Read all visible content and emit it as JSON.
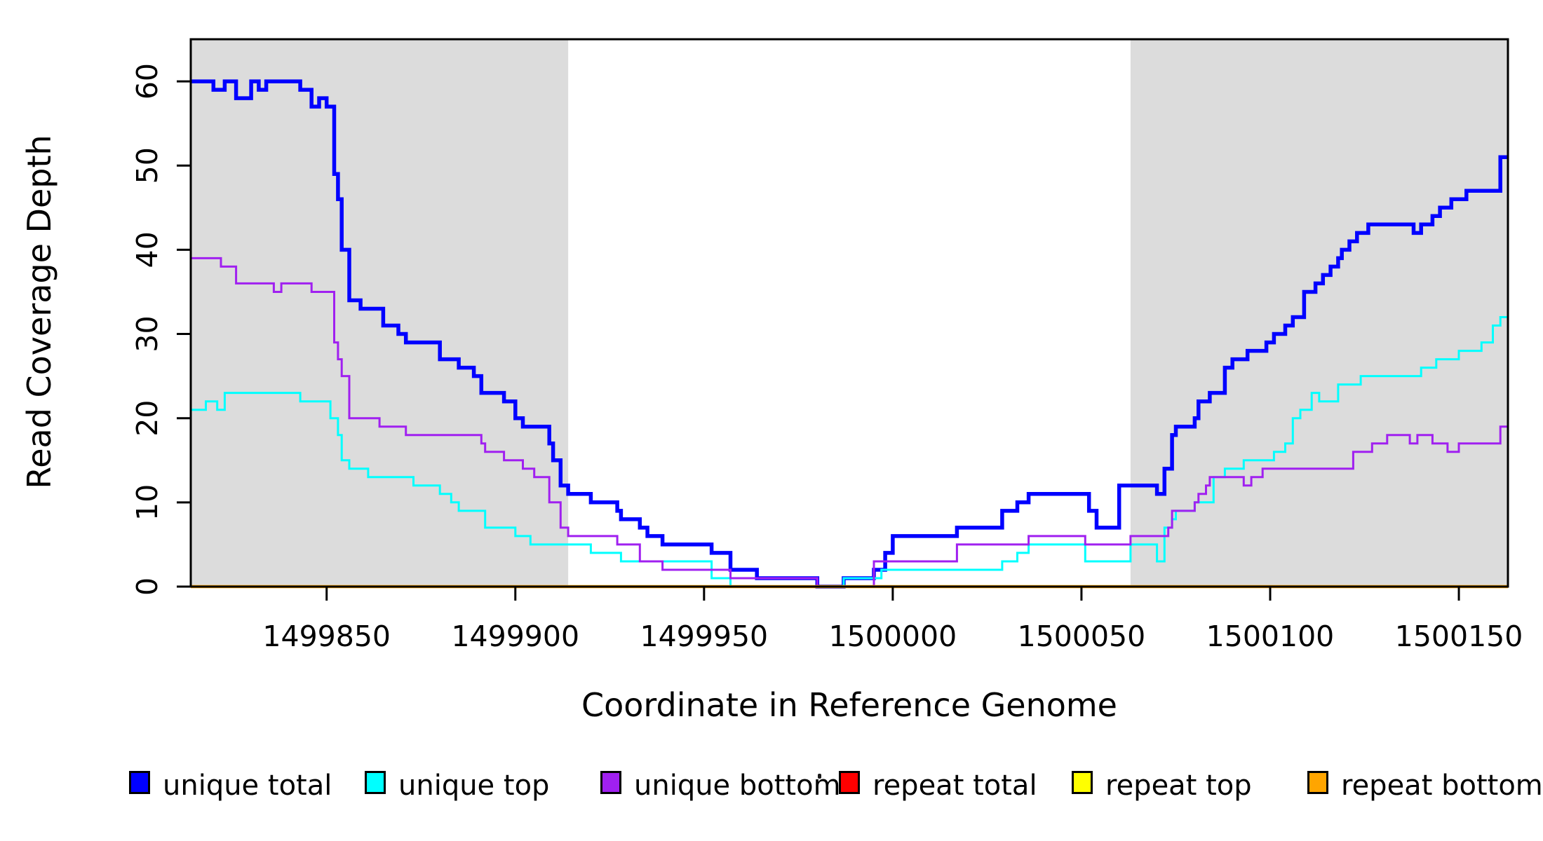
{
  "chart_data": {
    "type": "line",
    "subtype": "step-coverage",
    "title": "",
    "xlabel": "Coordinate in Reference Genome",
    "ylabel": "Read Coverage Depth",
    "xlim": [
      1499814,
      1500163
    ],
    "ylim": [
      0,
      65
    ],
    "grid": false,
    "x_ticks": [
      1499850,
      1499900,
      1499950,
      1500000,
      1500050,
      1500100,
      1500150
    ],
    "y_ticks": [
      0,
      10,
      20,
      30,
      40,
      50,
      60
    ],
    "shaded_regions": [
      {
        "name": "left-flank",
        "x0": 1499814,
        "x1": 1499914,
        "color": "#DCDCDC"
      },
      {
        "name": "right-flank",
        "x0": 1500063,
        "x1": 1500163,
        "color": "#DCDCDC"
      }
    ],
    "series": [
      {
        "name": "unique total",
        "color": "#0000FF",
        "width": 5.5,
        "points": [
          [
            1499814,
            60
          ],
          [
            1499820,
            59
          ],
          [
            1499823,
            60
          ],
          [
            1499826,
            58
          ],
          [
            1499830,
            60
          ],
          [
            1499832,
            59
          ],
          [
            1499834,
            60
          ],
          [
            1499843,
            59
          ],
          [
            1499846,
            57
          ],
          [
            1499848,
            58
          ],
          [
            1499850,
            57
          ],
          [
            1499852,
            49
          ],
          [
            1499853,
            46
          ],
          [
            1499854,
            40
          ],
          [
            1499856,
            34
          ],
          [
            1499859,
            33
          ],
          [
            1499865,
            31
          ],
          [
            1499869,
            30
          ],
          [
            1499871,
            29
          ],
          [
            1499880,
            27
          ],
          [
            1499885,
            26
          ],
          [
            1499889,
            25
          ],
          [
            1499891,
            23
          ],
          [
            1499897,
            22
          ],
          [
            1499900,
            20
          ],
          [
            1499902,
            19
          ],
          [
            1499909,
            17
          ],
          [
            1499910,
            15
          ],
          [
            1499912,
            12
          ],
          [
            1499914,
            11
          ],
          [
            1499920,
            10
          ],
          [
            1499927,
            9
          ],
          [
            1499928,
            8
          ],
          [
            1499933,
            7
          ],
          [
            1499935,
            6
          ],
          [
            1499939,
            5
          ],
          [
            1499952,
            4
          ],
          [
            1499957,
            2
          ],
          [
            1499964,
            1
          ],
          [
            1499980,
            0
          ],
          [
            1499987,
            1
          ],
          [
            1499995,
            2
          ],
          [
            1499998,
            4
          ],
          [
            1500000,
            6
          ],
          [
            1500017,
            7
          ],
          [
            1500029,
            9
          ],
          [
            1500033,
            10
          ],
          [
            1500036,
            11
          ],
          [
            1500052,
            9
          ],
          [
            1500054,
            7
          ],
          [
            1500060,
            12
          ],
          [
            1500070,
            11
          ],
          [
            1500072,
            14
          ],
          [
            1500074,
            18
          ],
          [
            1500075,
            19
          ],
          [
            1500080,
            20
          ],
          [
            1500081,
            22
          ],
          [
            1500084,
            23
          ],
          [
            1500088,
            26
          ],
          [
            1500090,
            27
          ],
          [
            1500094,
            28
          ],
          [
            1500099,
            29
          ],
          [
            1500101,
            30
          ],
          [
            1500104,
            31
          ],
          [
            1500106,
            32
          ],
          [
            1500109,
            35
          ],
          [
            1500112,
            36
          ],
          [
            1500114,
            37
          ],
          [
            1500116,
            38
          ],
          [
            1500118,
            39
          ],
          [
            1500119,
            40
          ],
          [
            1500121,
            41
          ],
          [
            1500123,
            42
          ],
          [
            1500126,
            43
          ],
          [
            1500138,
            42
          ],
          [
            1500140,
            43
          ],
          [
            1500143,
            44
          ],
          [
            1500145,
            45
          ],
          [
            1500148,
            46
          ],
          [
            1500152,
            47
          ],
          [
            1500161,
            51
          ],
          [
            1500163,
            51
          ]
        ]
      },
      {
        "name": "unique top",
        "color": "#00FFFF",
        "width": 3,
        "points": [
          [
            1499814,
            21
          ],
          [
            1499818,
            22
          ],
          [
            1499821,
            21
          ],
          [
            1499823,
            23
          ],
          [
            1499843,
            22
          ],
          [
            1499851,
            20
          ],
          [
            1499853,
            18
          ],
          [
            1499854,
            15
          ],
          [
            1499856,
            14
          ],
          [
            1499861,
            13
          ],
          [
            1499873,
            12
          ],
          [
            1499880,
            11
          ],
          [
            1499883,
            10
          ],
          [
            1499885,
            9
          ],
          [
            1499892,
            7
          ],
          [
            1499900,
            6
          ],
          [
            1499904,
            5
          ],
          [
            1499920,
            4
          ],
          [
            1499928,
            3
          ],
          [
            1499952,
            1
          ],
          [
            1499957,
            0
          ],
          [
            1499987,
            1
          ],
          [
            1499997,
            2
          ],
          [
            1500029,
            3
          ],
          [
            1500033,
            4
          ],
          [
            1500036,
            5
          ],
          [
            1500051,
            3
          ],
          [
            1500063,
            5
          ],
          [
            1500070,
            3
          ],
          [
            1500072,
            7
          ],
          [
            1500074,
            8
          ],
          [
            1500075,
            9
          ],
          [
            1500080,
            10
          ],
          [
            1500085,
            13
          ],
          [
            1500088,
            14
          ],
          [
            1500093,
            15
          ],
          [
            1500101,
            16
          ],
          [
            1500104,
            17
          ],
          [
            1500106,
            20
          ],
          [
            1500108,
            21
          ],
          [
            1500111,
            23
          ],
          [
            1500113,
            22
          ],
          [
            1500118,
            24
          ],
          [
            1500124,
            25
          ],
          [
            1500140,
            26
          ],
          [
            1500144,
            27
          ],
          [
            1500150,
            28
          ],
          [
            1500156,
            29
          ],
          [
            1500159,
            31
          ],
          [
            1500161,
            32
          ],
          [
            1500163,
            32
          ]
        ]
      },
      {
        "name": "unique bottom",
        "color": "#A020F0",
        "width": 3,
        "points": [
          [
            1499814,
            39
          ],
          [
            1499822,
            38
          ],
          [
            1499826,
            36
          ],
          [
            1499836,
            35
          ],
          [
            1499838,
            36
          ],
          [
            1499846,
            35
          ],
          [
            1499852,
            29
          ],
          [
            1499853,
            27
          ],
          [
            1499854,
            25
          ],
          [
            1499856,
            20
          ],
          [
            1499864,
            19
          ],
          [
            1499871,
            18
          ],
          [
            1499891,
            17
          ],
          [
            1499892,
            16
          ],
          [
            1499897,
            15
          ],
          [
            1499902,
            14
          ],
          [
            1499905,
            13
          ],
          [
            1499909,
            10
          ],
          [
            1499912,
            7
          ],
          [
            1499914,
            6
          ],
          [
            1499927,
            5
          ],
          [
            1499933,
            3
          ],
          [
            1499939,
            2
          ],
          [
            1499957,
            1
          ],
          [
            1499980,
            0
          ],
          [
            1499995,
            3
          ],
          [
            1500017,
            5
          ],
          [
            1500036,
            6
          ],
          [
            1500051,
            5
          ],
          [
            1500063,
            6
          ],
          [
            1500073,
            7
          ],
          [
            1500074,
            9
          ],
          [
            1500080,
            10
          ],
          [
            1500081,
            11
          ],
          [
            1500083,
            12
          ],
          [
            1500084,
            13
          ],
          [
            1500093,
            12
          ],
          [
            1500095,
            13
          ],
          [
            1500098,
            14
          ],
          [
            1500122,
            16
          ],
          [
            1500127,
            17
          ],
          [
            1500131,
            18
          ],
          [
            1500137,
            17
          ],
          [
            1500139,
            18
          ],
          [
            1500143,
            17
          ],
          [
            1500147,
            16
          ],
          [
            1500150,
            17
          ],
          [
            1500161,
            19
          ],
          [
            1500163,
            19
          ]
        ]
      },
      {
        "name": "repeat total",
        "color": "#FF0000",
        "width": 3,
        "points": [
          [
            1499814,
            0
          ],
          [
            1500163,
            0
          ]
        ]
      },
      {
        "name": "repeat top",
        "color": "#FFFF00",
        "width": 3,
        "points": [
          [
            1499814,
            0
          ],
          [
            1500163,
            0
          ]
        ]
      },
      {
        "name": "repeat bottom",
        "color": "#FFA500",
        "width": 4.5,
        "points": [
          [
            1499814,
            0
          ],
          [
            1500163,
            0
          ]
        ]
      }
    ],
    "legend": {
      "position": "bottom",
      "items": [
        {
          "label": "unique total",
          "color": "#0000FF"
        },
        {
          "label": "unique top",
          "color": "#00FFFF"
        },
        {
          "label": "unique bottom",
          "color": "#A020F0"
        },
        {
          "label": "repeat total",
          "color": "#FF0000"
        },
        {
          "label": "repeat top",
          "color": "#FFFF00"
        },
        {
          "label": "repeat bottom",
          "color": "#FFA500"
        }
      ]
    }
  },
  "axis": {
    "x_title": "Coordinate in Reference Genome",
    "y_title": "Read Coverage Depth"
  }
}
